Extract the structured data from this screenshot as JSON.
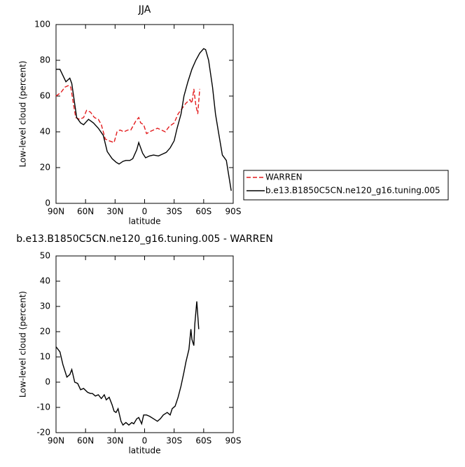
{
  "chart_data": [
    {
      "type": "line",
      "title": "JJA",
      "xlabel": "latitude",
      "ylabel": "Low-level cloud (percent)",
      "xlim": [
        90,
        -90
      ],
      "xticks": [
        {
          "value": 90,
          "label": "90N"
        },
        {
          "value": 60,
          "label": "60N"
        },
        {
          "value": 30,
          "label": "30N"
        },
        0,
        {
          "value": -30,
          "label": "30S"
        },
        {
          "value": -60,
          "label": "60S"
        },
        {
          "value": -90,
          "label": "90S"
        }
      ],
      "ylim": [
        0,
        100
      ],
      "yticks": [
        0,
        20,
        40,
        60,
        80,
        100
      ],
      "legend": "right",
      "series": [
        {
          "name": "WARREN",
          "color": "#e31a1c",
          "line_style": "dashed",
          "x": [
            90,
            85,
            81,
            77,
            75,
            73,
            70,
            66,
            62,
            59,
            55,
            51,
            47,
            44,
            40,
            36,
            31,
            28,
            25,
            21,
            17,
            14,
            9,
            6,
            4,
            1,
            -2,
            -5,
            -9,
            -13,
            -17,
            -21,
            -25,
            -30,
            -34,
            -38,
            -42,
            -46,
            -48,
            -50,
            -52,
            -54,
            -56
          ],
          "values": [
            60,
            62,
            65,
            66,
            65,
            58,
            48,
            47,
            48,
            52,
            51,
            48,
            47,
            44,
            36,
            35,
            34,
            40,
            41,
            40,
            41,
            41,
            46,
            48,
            45,
            44,
            39,
            40,
            41,
            42,
            41,
            40,
            43,
            45,
            50,
            53,
            56,
            58,
            56,
            64,
            55,
            50,
            64
          ]
        },
        {
          "name": "b.e13.B1850C5CN.ne120_g16.tuning.005",
          "color": "#000000",
          "line_style": "solid",
          "x": [
            90,
            86,
            80,
            76,
            74,
            69,
            65,
            62,
            57,
            52,
            47,
            42,
            38,
            33,
            29,
            26,
            22,
            19,
            15,
            12,
            8,
            6,
            2,
            -1,
            -5,
            -9,
            -14,
            -18,
            -22,
            -26,
            -30,
            -33,
            -37,
            -40,
            -44,
            -48,
            -52,
            -56,
            -60,
            -62,
            -65,
            -69,
            -72,
            -75,
            -79,
            -83,
            -88
          ],
          "values": [
            75,
            75,
            68,
            70,
            67,
            48,
            45,
            44,
            47,
            45,
            42,
            38,
            29,
            25,
            23,
            22,
            23.5,
            24,
            24,
            25,
            30,
            34,
            28,
            25.5,
            26.5,
            27,
            26.5,
            27.5,
            28.5,
            31,
            35,
            42,
            50,
            60,
            68,
            75,
            80,
            84,
            86.5,
            86,
            80,
            65,
            50,
            40,
            27,
            24,
            7
          ]
        }
      ]
    },
    {
      "type": "line",
      "title": "b.e13.B1850C5CN.ne120_g16.tuning.005 - WARREN",
      "xlabel": "latitude",
      "ylabel": "Low-level cloud (percent)",
      "xlim": [
        90,
        -90
      ],
      "xticks": [
        {
          "value": 90,
          "label": "90N"
        },
        {
          "value": 60,
          "label": "60N"
        },
        {
          "value": 30,
          "label": "30N"
        },
        0,
        {
          "value": -30,
          "label": "30S"
        },
        {
          "value": -60,
          "label": "60S"
        },
        {
          "value": -90,
          "label": "90S"
        }
      ],
      "ylim": [
        -20,
        50
      ],
      "yticks": [
        -20,
        -10,
        0,
        10,
        20,
        30,
        40,
        50
      ],
      "series": [
        {
          "color": "#000000",
          "line_style": "solid",
          "x": [
            90,
            86,
            83,
            79,
            76,
            74,
            71,
            68,
            65,
            62,
            58,
            55,
            53,
            50,
            47,
            44,
            41,
            39,
            36,
            33,
            31,
            29,
            27,
            24,
            22,
            19,
            16,
            13,
            11,
            8,
            6,
            3,
            1,
            -2,
            -5,
            -9,
            -13,
            -16,
            -19,
            -23,
            -26,
            -28,
            -31,
            -34,
            -37,
            -40,
            -42,
            -45,
            -47,
            -48,
            -50,
            -51,
            -53,
            -55
          ],
          "values": [
            14,
            12,
            7,
            2,
            3,
            5,
            0,
            -0.5,
            -3,
            -2.5,
            -4,
            -4.5,
            -4.5,
            -5.5,
            -5,
            -6.5,
            -5,
            -7,
            -6,
            -9,
            -11.5,
            -12,
            -10.5,
            -15.5,
            -17,
            -16,
            -17,
            -16,
            -16.5,
            -14.5,
            -14,
            -16.5,
            -13,
            -13,
            -13.5,
            -14.5,
            -15.5,
            -14.5,
            -13,
            -12,
            -13,
            -10.5,
            -9.5,
            -6,
            -1.5,
            4,
            8,
            13,
            21,
            17,
            14.5,
            23,
            32,
            21
          ]
        }
      ]
    }
  ]
}
